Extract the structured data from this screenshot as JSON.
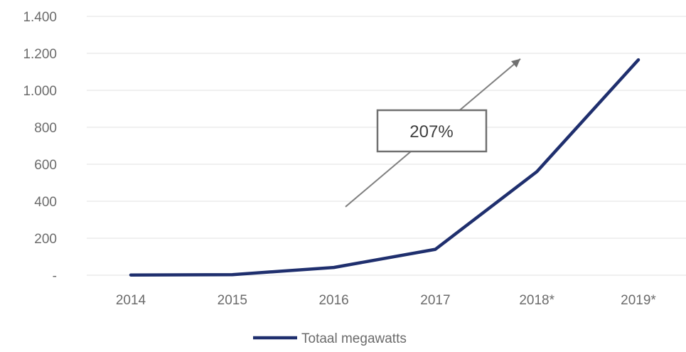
{
  "chart_data": {
    "type": "line",
    "title": "",
    "xlabel": "",
    "ylabel": "",
    "categories": [
      "2014",
      "2015",
      "2016",
      "2017",
      "2018*",
      "2019*"
    ],
    "series": [
      {
        "name": "Totaal megawatts",
        "values": [
          1,
          3,
          42,
          140,
          560,
          1165
        ],
        "color": "#1f2f6e"
      }
    ],
    "ylim": [
      0,
      1400
    ],
    "yticks": [
      0,
      200,
      400,
      600,
      800,
      1000,
      1200,
      1400
    ],
    "ytick_labels": [
      "-",
      "200",
      "400",
      "600",
      "800",
      "1.000",
      "1.200",
      "1.400"
    ],
    "grid": "horizontal",
    "legend_position": "bottom",
    "annotation": {
      "text": "207%",
      "arrow_from": {
        "x": "2016",
        "y": 370
      },
      "arrow_to": {
        "x": "2018*",
        "y": 1170
      },
      "arrow_color": "#808080"
    },
    "gridline_color": "#e6e6e6"
  }
}
